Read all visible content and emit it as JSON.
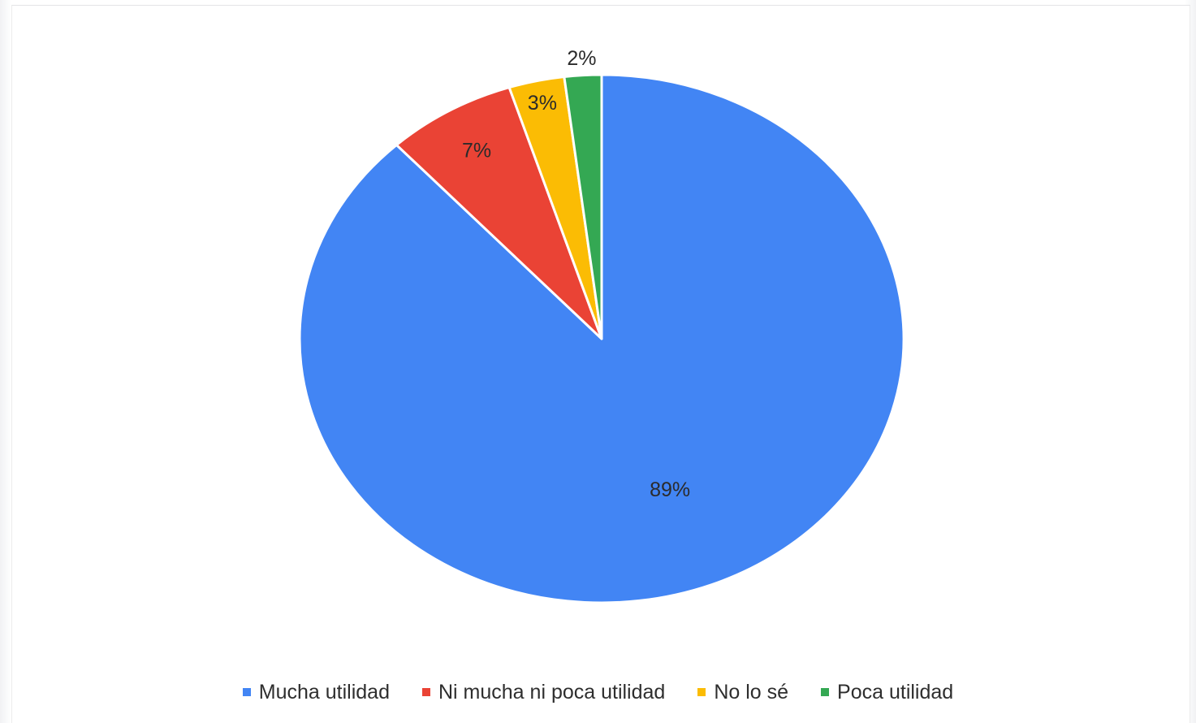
{
  "chart_data": {
    "type": "pie",
    "title": "",
    "slices": [
      {
        "label": "Mucha utilidad",
        "value": 89,
        "display": "89%",
        "color": "#4285f4"
      },
      {
        "label": "Ni mucha ni poca utilidad",
        "value": 7,
        "display": "7%",
        "color": "#ea4335"
      },
      {
        "label": "No lo sé",
        "value": 3,
        "display": "3%",
        "color": "#fbbc04"
      },
      {
        "label": "Poca utilidad",
        "value": 2,
        "display": "2%",
        "color": "#34a853"
      }
    ],
    "legend_position": "bottom",
    "start_angle": "12 o'clock",
    "direction": "clockwise"
  }
}
